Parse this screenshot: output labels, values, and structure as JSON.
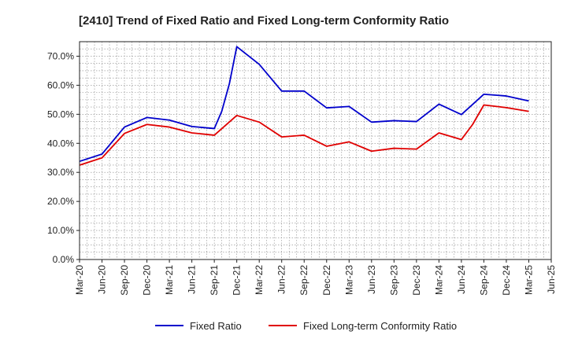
{
  "chart_data": {
    "type": "line",
    "title": "[2410]  Trend of Fixed Ratio and Fixed Long-term Conformity Ratio",
    "xlabel": "",
    "ylabel": "",
    "ylim": [
      0,
      75
    ],
    "y_ticks": [
      0,
      10,
      20,
      30,
      40,
      50,
      60,
      70
    ],
    "y_tick_labels": [
      "0.0%",
      "10.0%",
      "20.0%",
      "30.0%",
      "40.0%",
      "50.0%",
      "60.0%",
      "70.0%"
    ],
    "x_tick_labels": [
      "Mar-20",
      "Jun-20",
      "Sep-20",
      "Dec-20",
      "Mar-21",
      "Jun-21",
      "Sep-21",
      "Dec-21",
      "Mar-22",
      "Jun-22",
      "Sep-22",
      "Dec-22",
      "Mar-23",
      "Jun-23",
      "Sep-23",
      "Dec-23",
      "Mar-24",
      "Jun-24",
      "Sep-24",
      "Dec-24",
      "Mar-25",
      "Jun-25"
    ],
    "grid": true,
    "legend_position": "bottom",
    "series": [
      {
        "name": "Fixed Ratio",
        "color": "#0000cc",
        "points": [
          [
            0,
            33.8
          ],
          [
            1,
            36.3
          ],
          [
            2,
            45.6
          ],
          [
            3,
            48.9
          ],
          [
            4,
            48.0
          ],
          [
            5,
            45.8
          ],
          [
            6,
            45.1
          ],
          [
            6.33,
            51.0
          ],
          [
            6.67,
            60.5
          ],
          [
            7,
            73.3
          ],
          [
            8,
            67.2
          ],
          [
            9,
            58.0
          ],
          [
            10,
            58.0
          ],
          [
            11,
            52.2
          ],
          [
            12,
            52.7
          ],
          [
            13,
            47.3
          ],
          [
            14,
            47.8
          ],
          [
            15,
            47.5
          ],
          [
            16,
            53.5
          ],
          [
            17,
            49.9
          ],
          [
            18,
            56.9
          ],
          [
            19,
            56.3
          ],
          [
            20,
            54.6
          ]
        ]
      },
      {
        "name": "Fixed Long-term Conformity Ratio",
        "color": "#e00000",
        "points": [
          [
            0,
            32.5
          ],
          [
            1,
            35.0
          ],
          [
            2,
            43.4
          ],
          [
            3,
            46.5
          ],
          [
            4,
            45.6
          ],
          [
            5,
            43.6
          ],
          [
            6,
            42.8
          ],
          [
            7,
            49.6
          ],
          [
            8,
            47.3
          ],
          [
            9,
            42.2
          ],
          [
            10,
            42.8
          ],
          [
            11,
            39.0
          ],
          [
            12,
            40.5
          ],
          [
            13,
            37.3
          ],
          [
            14,
            38.3
          ],
          [
            15,
            38.0
          ],
          [
            16,
            43.6
          ],
          [
            17,
            41.3
          ],
          [
            17.5,
            46.5
          ],
          [
            18,
            53.2
          ],
          [
            19,
            52.3
          ],
          [
            20,
            51.0
          ]
        ]
      }
    ]
  }
}
